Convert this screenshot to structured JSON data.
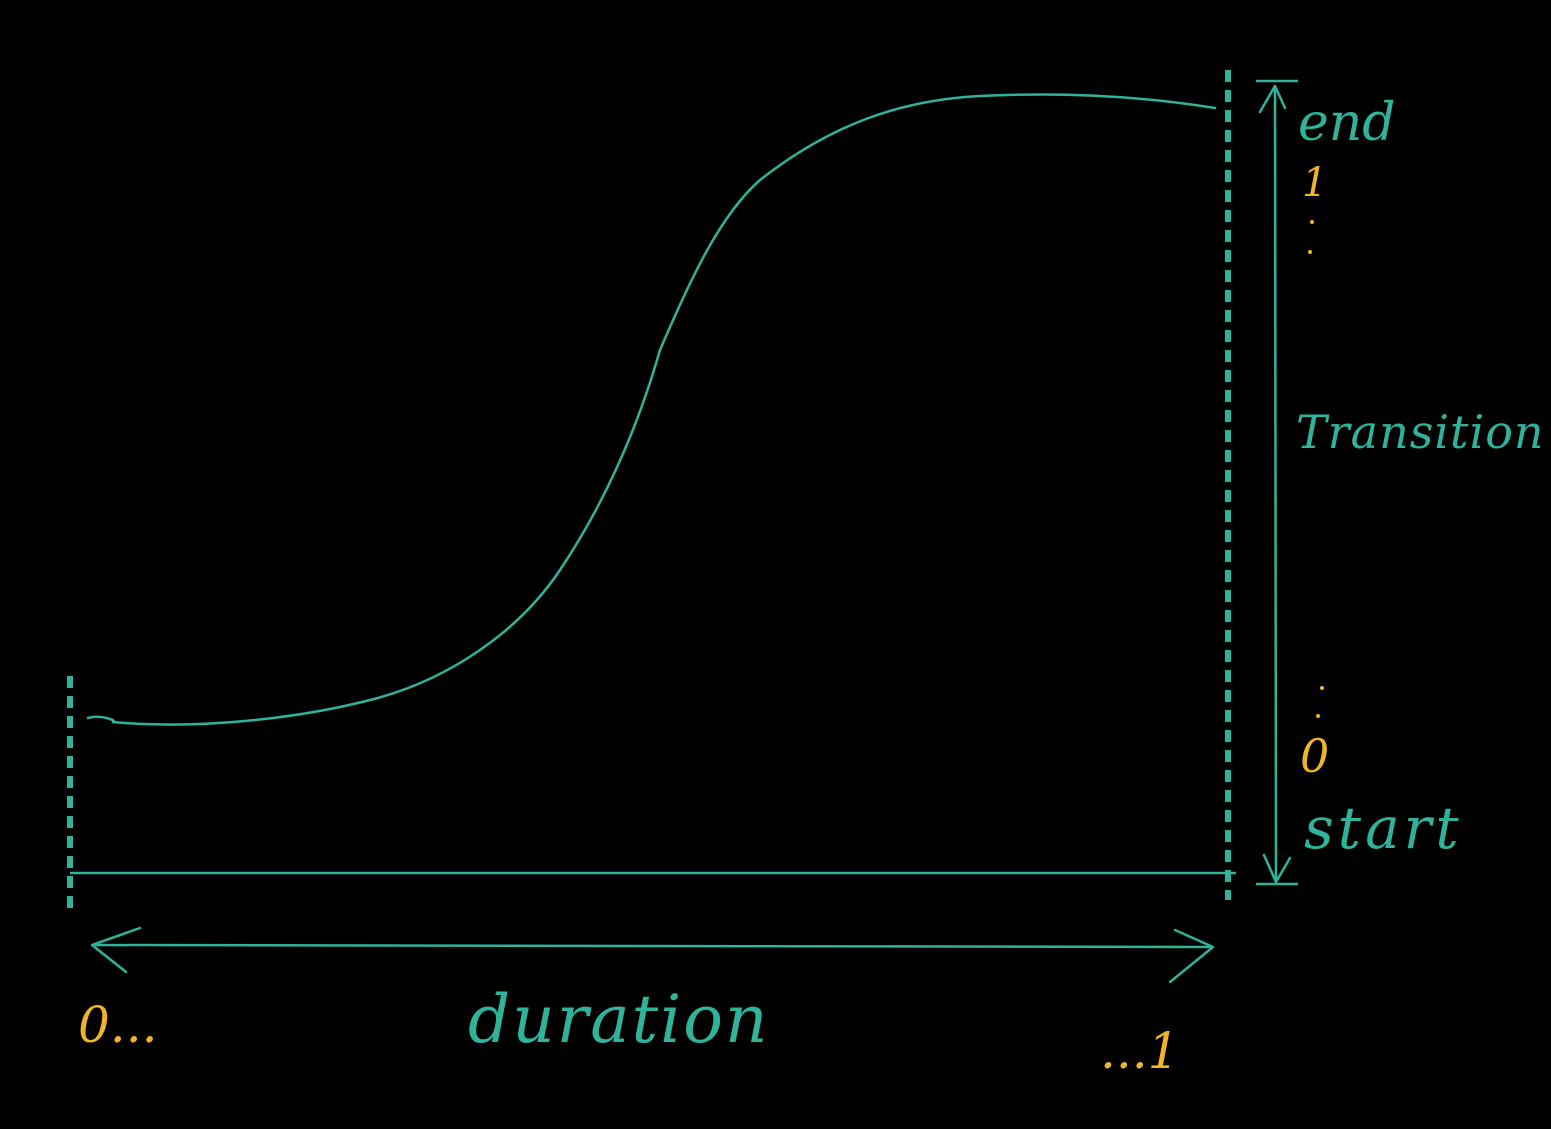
{
  "colors": {
    "background": "#000000",
    "curve": "#2fb39a",
    "accent_yellow": "#f0b429"
  },
  "labels": {
    "end": "end",
    "transition": "Transition",
    "start": "start",
    "duration": "duration",
    "value_top": "1",
    "value_bottom": "0",
    "time_start": "0...",
    "time_end": "...1"
  }
}
